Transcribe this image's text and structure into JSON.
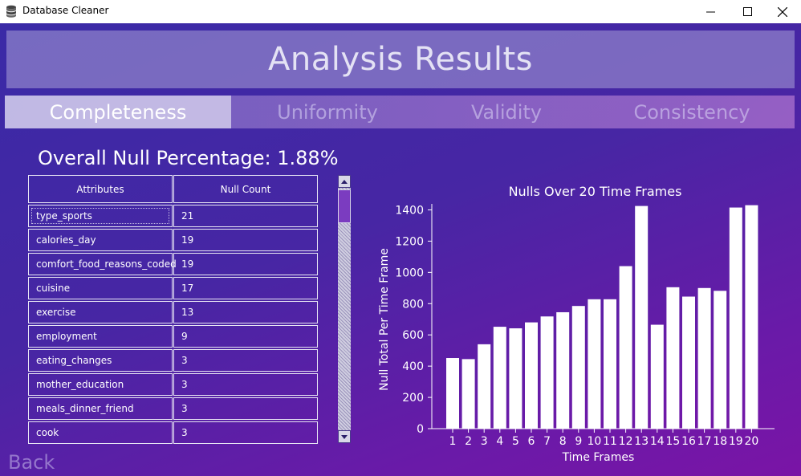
{
  "window": {
    "title": "Database Cleaner",
    "icon": "database-icon",
    "controls": [
      "minimize-icon",
      "maximize-icon",
      "close-icon"
    ]
  },
  "header": {
    "title": "Analysis Results"
  },
  "tabs": [
    {
      "label": "Completeness",
      "active": true
    },
    {
      "label": "Uniformity",
      "active": false
    },
    {
      "label": "Validity",
      "active": false
    },
    {
      "label": "Consistency",
      "active": false
    }
  ],
  "overall": {
    "text": "Overall Null Percentage: 1.88%"
  },
  "table": {
    "headers": [
      "Attributes",
      "Null Count"
    ],
    "rows": [
      [
        "type_sports",
        "21"
      ],
      [
        "calories_day",
        "19"
      ],
      [
        "comfort_food_reasons_coded",
        "19"
      ],
      [
        "cuisine",
        "17"
      ],
      [
        "exercise",
        "13"
      ],
      [
        "employment",
        "9"
      ],
      [
        "eating_changes",
        "3"
      ],
      [
        "mother_education",
        "3"
      ],
      [
        "meals_dinner_friend",
        "3"
      ],
      [
        "cook",
        "3"
      ]
    ]
  },
  "back": {
    "label": "Back"
  },
  "chart_data": {
    "type": "bar",
    "title": "Nulls Over 20 Time Frames",
    "xlabel": "Time Frames",
    "ylabel": "Null Total Per Time Frame",
    "categories": [
      "1",
      "2",
      "3",
      "4",
      "5",
      "6",
      "7",
      "8",
      "9",
      "10",
      "11",
      "12",
      "13",
      "14",
      "15",
      "16",
      "17",
      "18",
      "19",
      "20"
    ],
    "values": [
      452,
      445,
      540,
      652,
      642,
      680,
      718,
      745,
      785,
      828,
      828,
      1040,
      1425,
      665,
      905,
      845,
      900,
      882,
      1415,
      1430
    ],
    "yticks": [
      0,
      200,
      400,
      600,
      800,
      1000,
      1200,
      1400
    ],
    "ylim": [
      0,
      1500
    ],
    "bar_color": "#ffffff"
  }
}
